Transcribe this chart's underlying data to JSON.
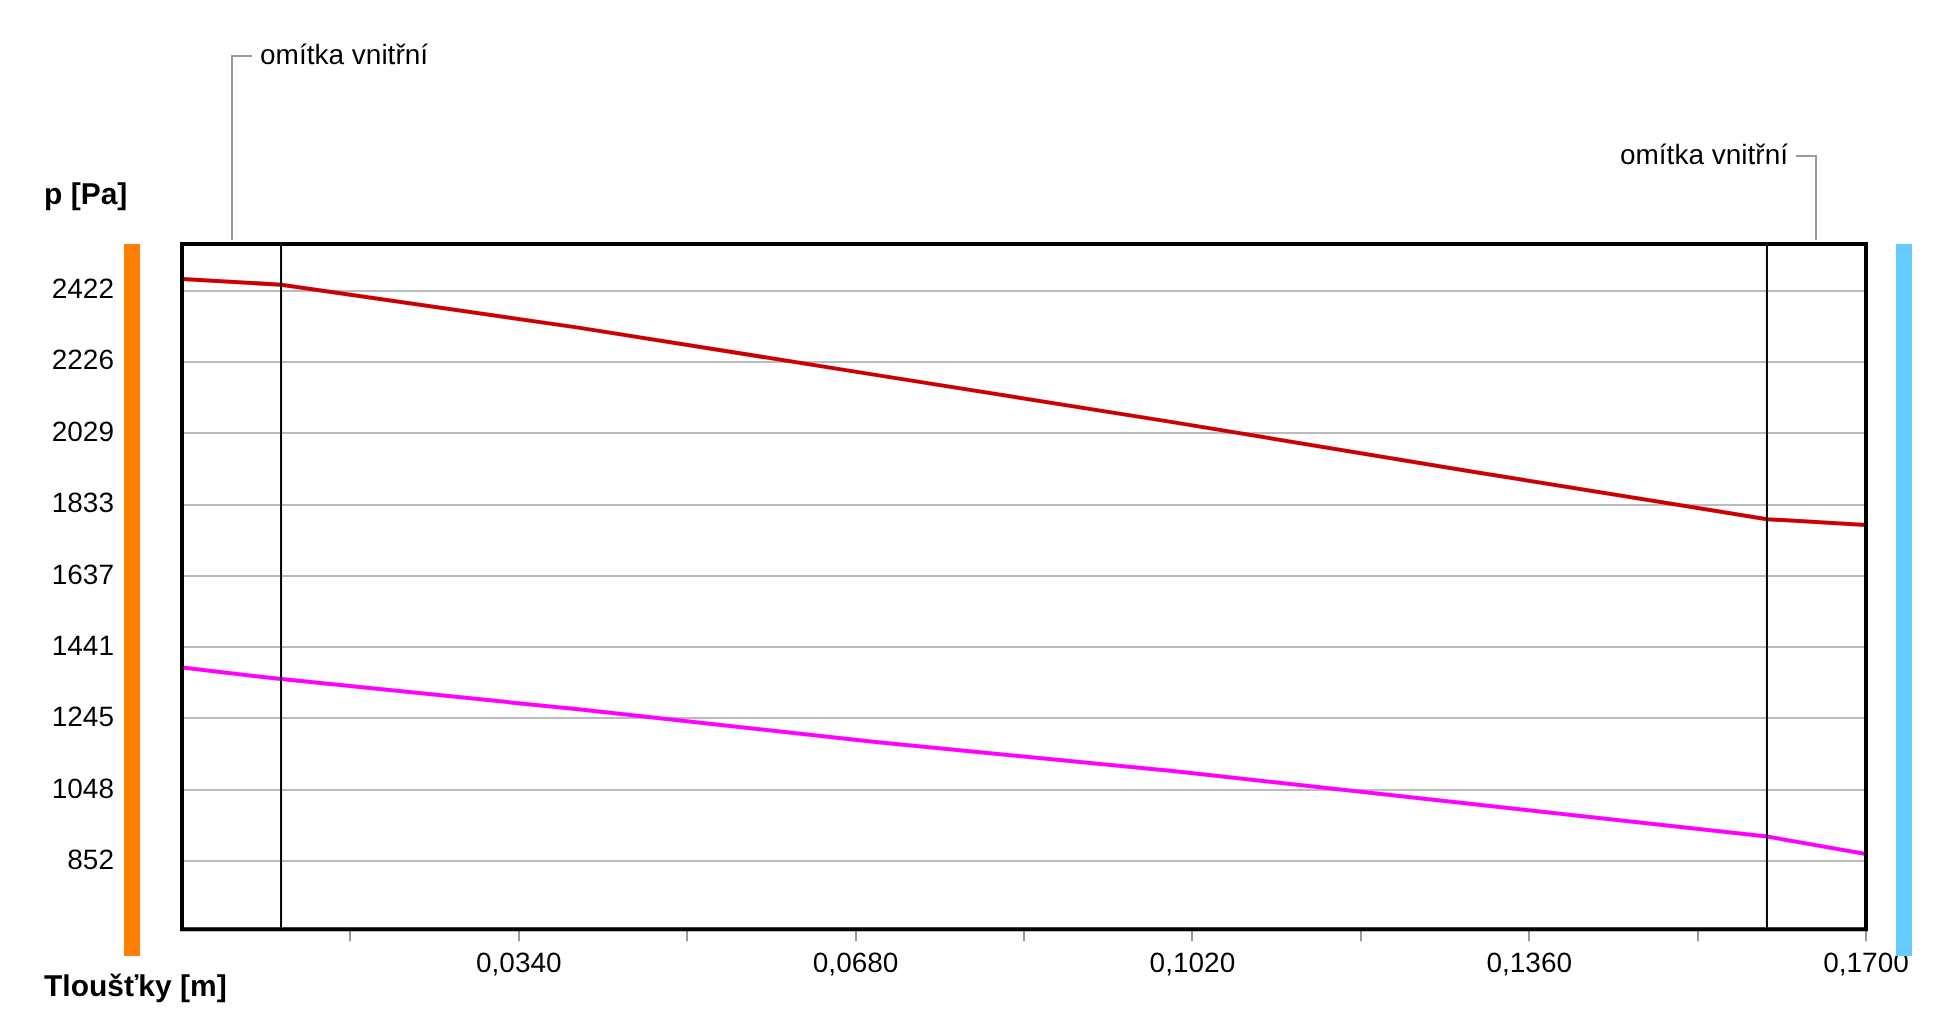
{
  "chart_data": {
    "type": "line",
    "xlabel": "Tloušťky [m]",
    "ylabel": "p [Pa]",
    "annotations": [
      "omítka vnitřní",
      "omítka vnitřní"
    ],
    "series": [
      {
        "color": "#cc0000",
        "x": [
          0,
          0.01,
          0.04,
          0.07,
          0.1,
          0.13,
          0.16,
          0.17
        ],
        "values": [
          2454,
          2438,
          2320,
          2190,
          2060,
          1925,
          1793,
          1777
        ]
      },
      {
        "color": "#ff00ff",
        "x": [
          0,
          0.01,
          0.04,
          0.07,
          0.1,
          0.13,
          0.16,
          0.17
        ],
        "values": [
          1385,
          1353,
          1270,
          1180,
          1100,
          1010,
          920,
          872
        ]
      }
    ],
    "xlim": [
      0,
      0.17
    ],
    "xticks": [
      {
        "value": 0.017,
        "label": null
      },
      {
        "value": 0.034,
        "label": "0,0340"
      },
      {
        "value": 0.051,
        "label": null
      },
      {
        "value": 0.068,
        "label": "0,0680"
      },
      {
        "value": 0.085,
        "label": null
      },
      {
        "value": 0.102,
        "label": "0,1020"
      },
      {
        "value": 0.119,
        "label": null
      },
      {
        "value": 0.136,
        "label": "0,1360"
      },
      {
        "value": 0.153,
        "label": null
      },
      {
        "value": 0.17,
        "label": "0,1700"
      }
    ],
    "ylim": [
      665,
      2550
    ],
    "yticks": [
      852,
      1048,
      1245,
      1441,
      1637,
      1833,
      2029,
      2226,
      2422
    ],
    "ref_lines": [
      {
        "axis": "x",
        "value": 0.01,
        "color": "#000000"
      },
      {
        "axis": "x",
        "value": 0.16,
        "color": "#000000"
      }
    ],
    "grid": "y",
    "legend": false,
    "marker": "none",
    "line_style": "solid"
  }
}
